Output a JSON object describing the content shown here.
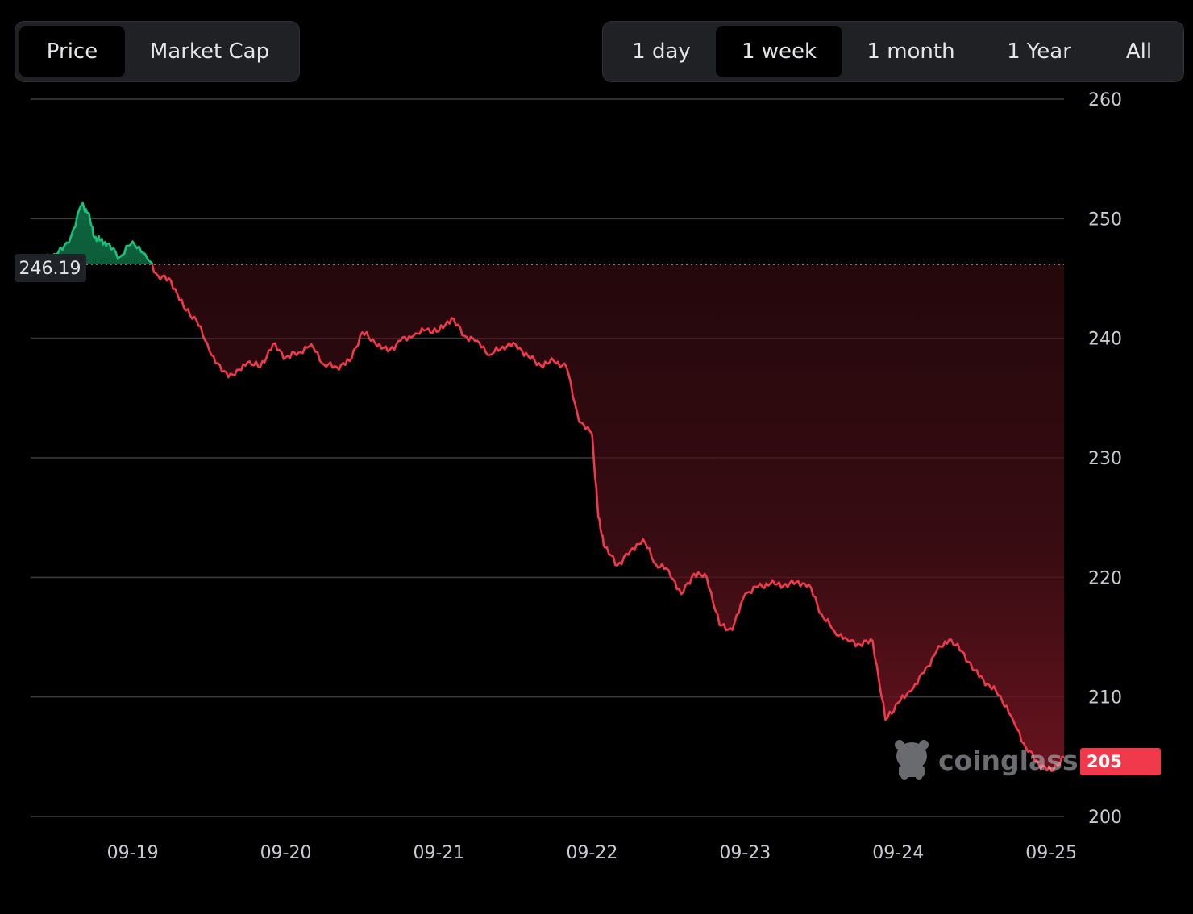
{
  "toolbar": {
    "metric_tabs": [
      {
        "label": "Price",
        "active": true
      },
      {
        "label": "Market Cap",
        "active": false
      }
    ],
    "range_tabs": [
      {
        "label": "1 day",
        "active": false
      },
      {
        "label": "1 week",
        "active": true
      },
      {
        "label": "1 month",
        "active": false
      },
      {
        "label": "1 Year",
        "active": false
      },
      {
        "label": "All",
        "active": false
      }
    ]
  },
  "watermark": {
    "text": "coinglass"
  },
  "colors": {
    "up": "#19c27a",
    "down": "#f0394b",
    "grid": "#3a3d42",
    "axis_text": "#c9cdd3",
    "badge_bg": "#1f2226"
  },
  "chart_data": {
    "type": "area",
    "title": "",
    "xlabel": "",
    "ylabel": "",
    "x_ticks": [
      "09-19",
      "09-20",
      "09-21",
      "09-22",
      "09-23",
      "09-24",
      "09-25"
    ],
    "y_ticks": [
      200,
      210,
      220,
      230,
      240,
      250,
      260
    ],
    "ylim": [
      200,
      260
    ],
    "baseline": {
      "value": 246.19,
      "label": "246.19"
    },
    "last_price": {
      "value": 205,
      "label": "205"
    },
    "grid": true,
    "series": [
      {
        "x": [
          "09-18 20:00",
          "09-18 22:00",
          "09-19 00:00",
          "09-19 02:00",
          "09-19 04:00",
          "09-19 05:00",
          "09-19 06:00",
          "09-19 07:00",
          "09-19 08:00",
          "09-19 10:00",
          "09-19 12:00",
          "09-19 14:00",
          "09-19 16:00",
          "09-19 18:00",
          "09-19 20:00",
          "09-19 22:00",
          "09-20 00:00",
          "09-20 02:00",
          "09-20 04:00",
          "09-20 06:00",
          "09-20 08:00",
          "09-20 10:00",
          "09-20 12:00",
          "09-20 14:00",
          "09-20 16:00",
          "09-20 18:00",
          "09-20 20:00",
          "09-20 22:00",
          "09-21 00:00",
          "09-21 02:00",
          "09-21 04:00",
          "09-21 06:00",
          "09-21 08:00",
          "09-21 10:00",
          "09-21 12:00",
          "09-21 14:00",
          "09-21 16:00",
          "09-21 18:00",
          "09-21 20:00",
          "09-21 22:00",
          "09-22 00:00",
          "09-22 02:00",
          "09-22 04:00",
          "09-22 06:00",
          "09-22 08:00",
          "09-22 10:00",
          "09-22 12:00",
          "09-22 13:00",
          "09-22 14:00",
          "09-22 16:00",
          "09-22 18:00",
          "09-22 20:00",
          "09-22 22:00",
          "09-23 00:00",
          "09-23 02:00",
          "09-23 04:00",
          "09-23 06:00",
          "09-23 08:00",
          "09-23 10:00",
          "09-23 12:00",
          "09-23 14:00",
          "09-23 16:00",
          "09-23 18:00",
          "09-23 20:00",
          "09-23 22:00",
          "09-24 00:00",
          "09-24 02:00",
          "09-24 04:00",
          "09-24 06:00",
          "09-24 08:00",
          "09-24 10:00",
          "09-24 12:00",
          "09-24 14:00",
          "09-24 16:00",
          "09-24 18:00",
          "09-24 20:00",
          "09-24 22:00",
          "09-25 00:00",
          "09-25 02:00",
          "09-25 04:00",
          "09-25 06:00",
          "09-25 08:00",
          "09-25 10:00",
          "09-25 12:00",
          "09-25 14:00"
        ],
        "values": [
          246.6,
          246.6,
          247.0,
          248.0,
          251.2,
          250.5,
          248.4,
          248.2,
          247.9,
          246.8,
          248.1,
          247.0,
          245.2,
          244.8,
          242.6,
          241.5,
          239.0,
          237.2,
          236.9,
          238.0,
          237.6,
          239.5,
          238.4,
          238.8,
          239.5,
          237.8,
          237.6,
          238.1,
          240.5,
          239.6,
          238.9,
          239.8,
          240.2,
          240.7,
          240.6,
          241.7,
          240.2,
          239.8,
          238.6,
          239.3,
          239.5,
          238.5,
          237.7,
          238.1,
          237.6,
          233.0,
          232.0,
          225.0,
          222.5,
          221.0,
          222.2,
          223.2,
          221.1,
          220.6,
          218.6,
          220.3,
          220.0,
          216.0,
          215.6,
          218.6,
          219.2,
          219.5,
          219.3,
          219.6,
          219.4,
          216.9,
          215.5,
          214.8,
          214.4,
          214.7,
          208.1,
          209.5,
          210.5,
          212.0,
          213.8,
          214.8,
          213.8,
          212.2,
          211.1,
          210.1,
          208.1,
          205.8,
          204.4,
          203.8,
          205.0
        ]
      }
    ]
  }
}
